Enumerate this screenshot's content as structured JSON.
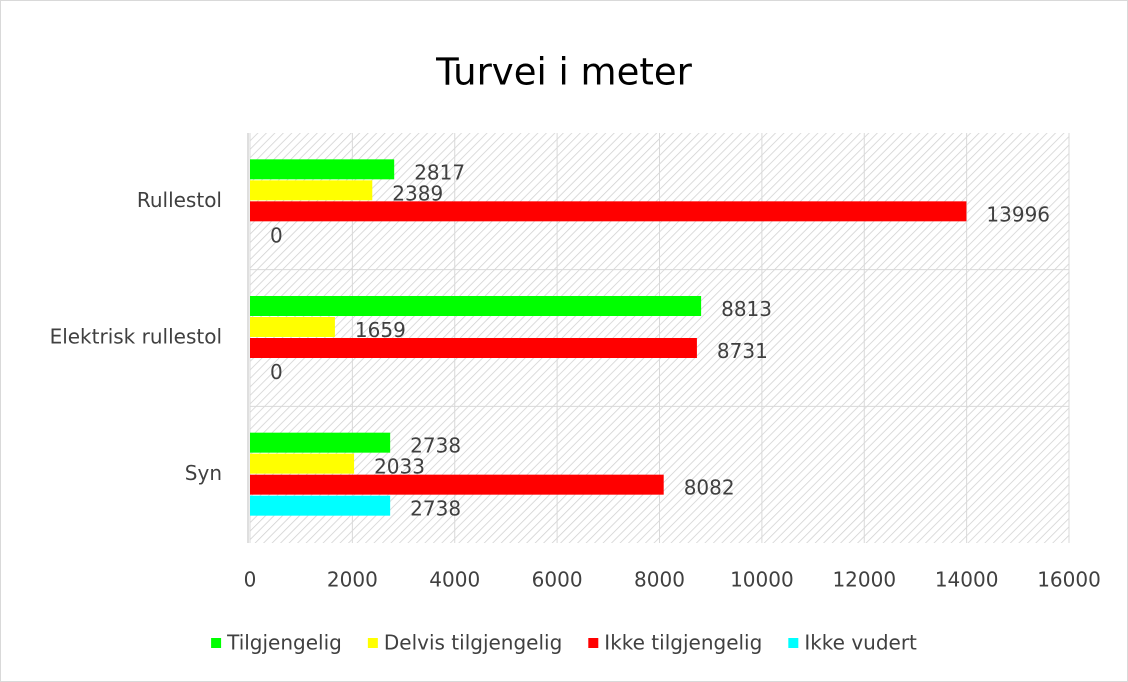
{
  "chart_data": {
    "type": "hbar",
    "title": "Turvei i meter",
    "categories": [
      "Rullestol",
      "Elektrisk rullestol",
      "Syn"
    ],
    "series": [
      {
        "name": "Tilgjengelig",
        "color": "#00ff00",
        "values": [
          2817,
          8813,
          2738
        ]
      },
      {
        "name": "Delvis tilgjengelig",
        "color": "#ffff00",
        "values": [
          2389,
          1659,
          2033
        ]
      },
      {
        "name": "Ikke tilgjengelig",
        "color": "#ff0000",
        "values": [
          13996,
          8731,
          8082
        ]
      },
      {
        "name": "Ikke vudert",
        "color": "#00ffff",
        "values": [
          0,
          0,
          2738
        ]
      }
    ],
    "xlim": [
      0,
      16000
    ],
    "xticks": [
      0,
      2000,
      4000,
      6000,
      8000,
      10000,
      12000,
      14000,
      16000
    ],
    "grid": true,
    "legend": "bottom"
  }
}
